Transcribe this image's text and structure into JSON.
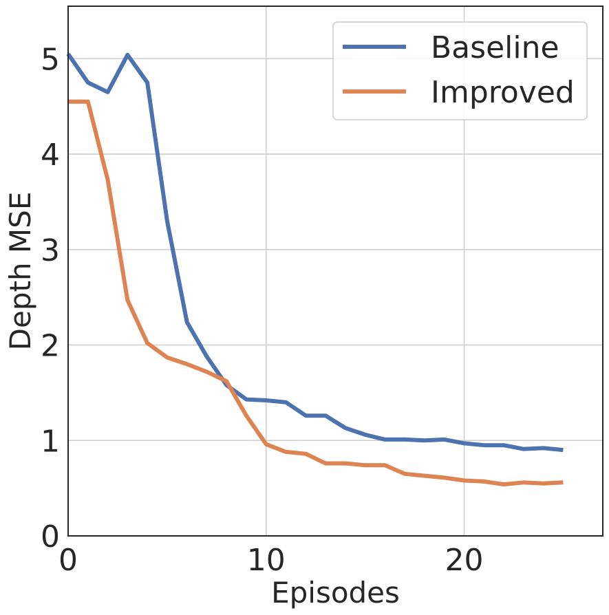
{
  "chart_data": {
    "type": "line",
    "title": "",
    "xlabel": "Episodes",
    "ylabel": "Depth MSE",
    "xlim": [
      0,
      27
    ],
    "ylim": [
      0,
      5.55
    ],
    "xticks": [
      0,
      10,
      20
    ],
    "yticks": [
      0,
      1,
      2,
      3,
      4,
      5
    ],
    "grid": true,
    "legend_position": "top-right",
    "series": [
      {
        "name": "Baseline",
        "color": "#4c72b0",
        "x": [
          0,
          1,
          2,
          3,
          4,
          5,
          6,
          7,
          8,
          9,
          10,
          11,
          12,
          13,
          14,
          15,
          16,
          17,
          18,
          19,
          20,
          21,
          22,
          23,
          24,
          25
        ],
        "values": [
          5.05,
          4.75,
          4.65,
          5.04,
          4.75,
          3.3,
          2.24,
          1.88,
          1.58,
          1.43,
          1.42,
          1.4,
          1.26,
          1.26,
          1.13,
          1.06,
          1.01,
          1.01,
          1.0,
          1.01,
          0.97,
          0.95,
          0.95,
          0.91,
          0.92,
          0.9
        ]
      },
      {
        "name": "Improved",
        "color": "#dd8452",
        "x": [
          0,
          1,
          2,
          3,
          4,
          5,
          6,
          7,
          8,
          9,
          10,
          11,
          12,
          13,
          14,
          15,
          16,
          17,
          18,
          19,
          20,
          21,
          22,
          23,
          24,
          25
        ],
        "values": [
          4.55,
          4.55,
          3.73,
          2.47,
          2.02,
          1.87,
          1.8,
          1.72,
          1.62,
          1.26,
          0.96,
          0.88,
          0.86,
          0.76,
          0.76,
          0.74,
          0.74,
          0.65,
          0.63,
          0.61,
          0.58,
          0.57,
          0.54,
          0.56,
          0.55,
          0.56
        ]
      }
    ]
  }
}
